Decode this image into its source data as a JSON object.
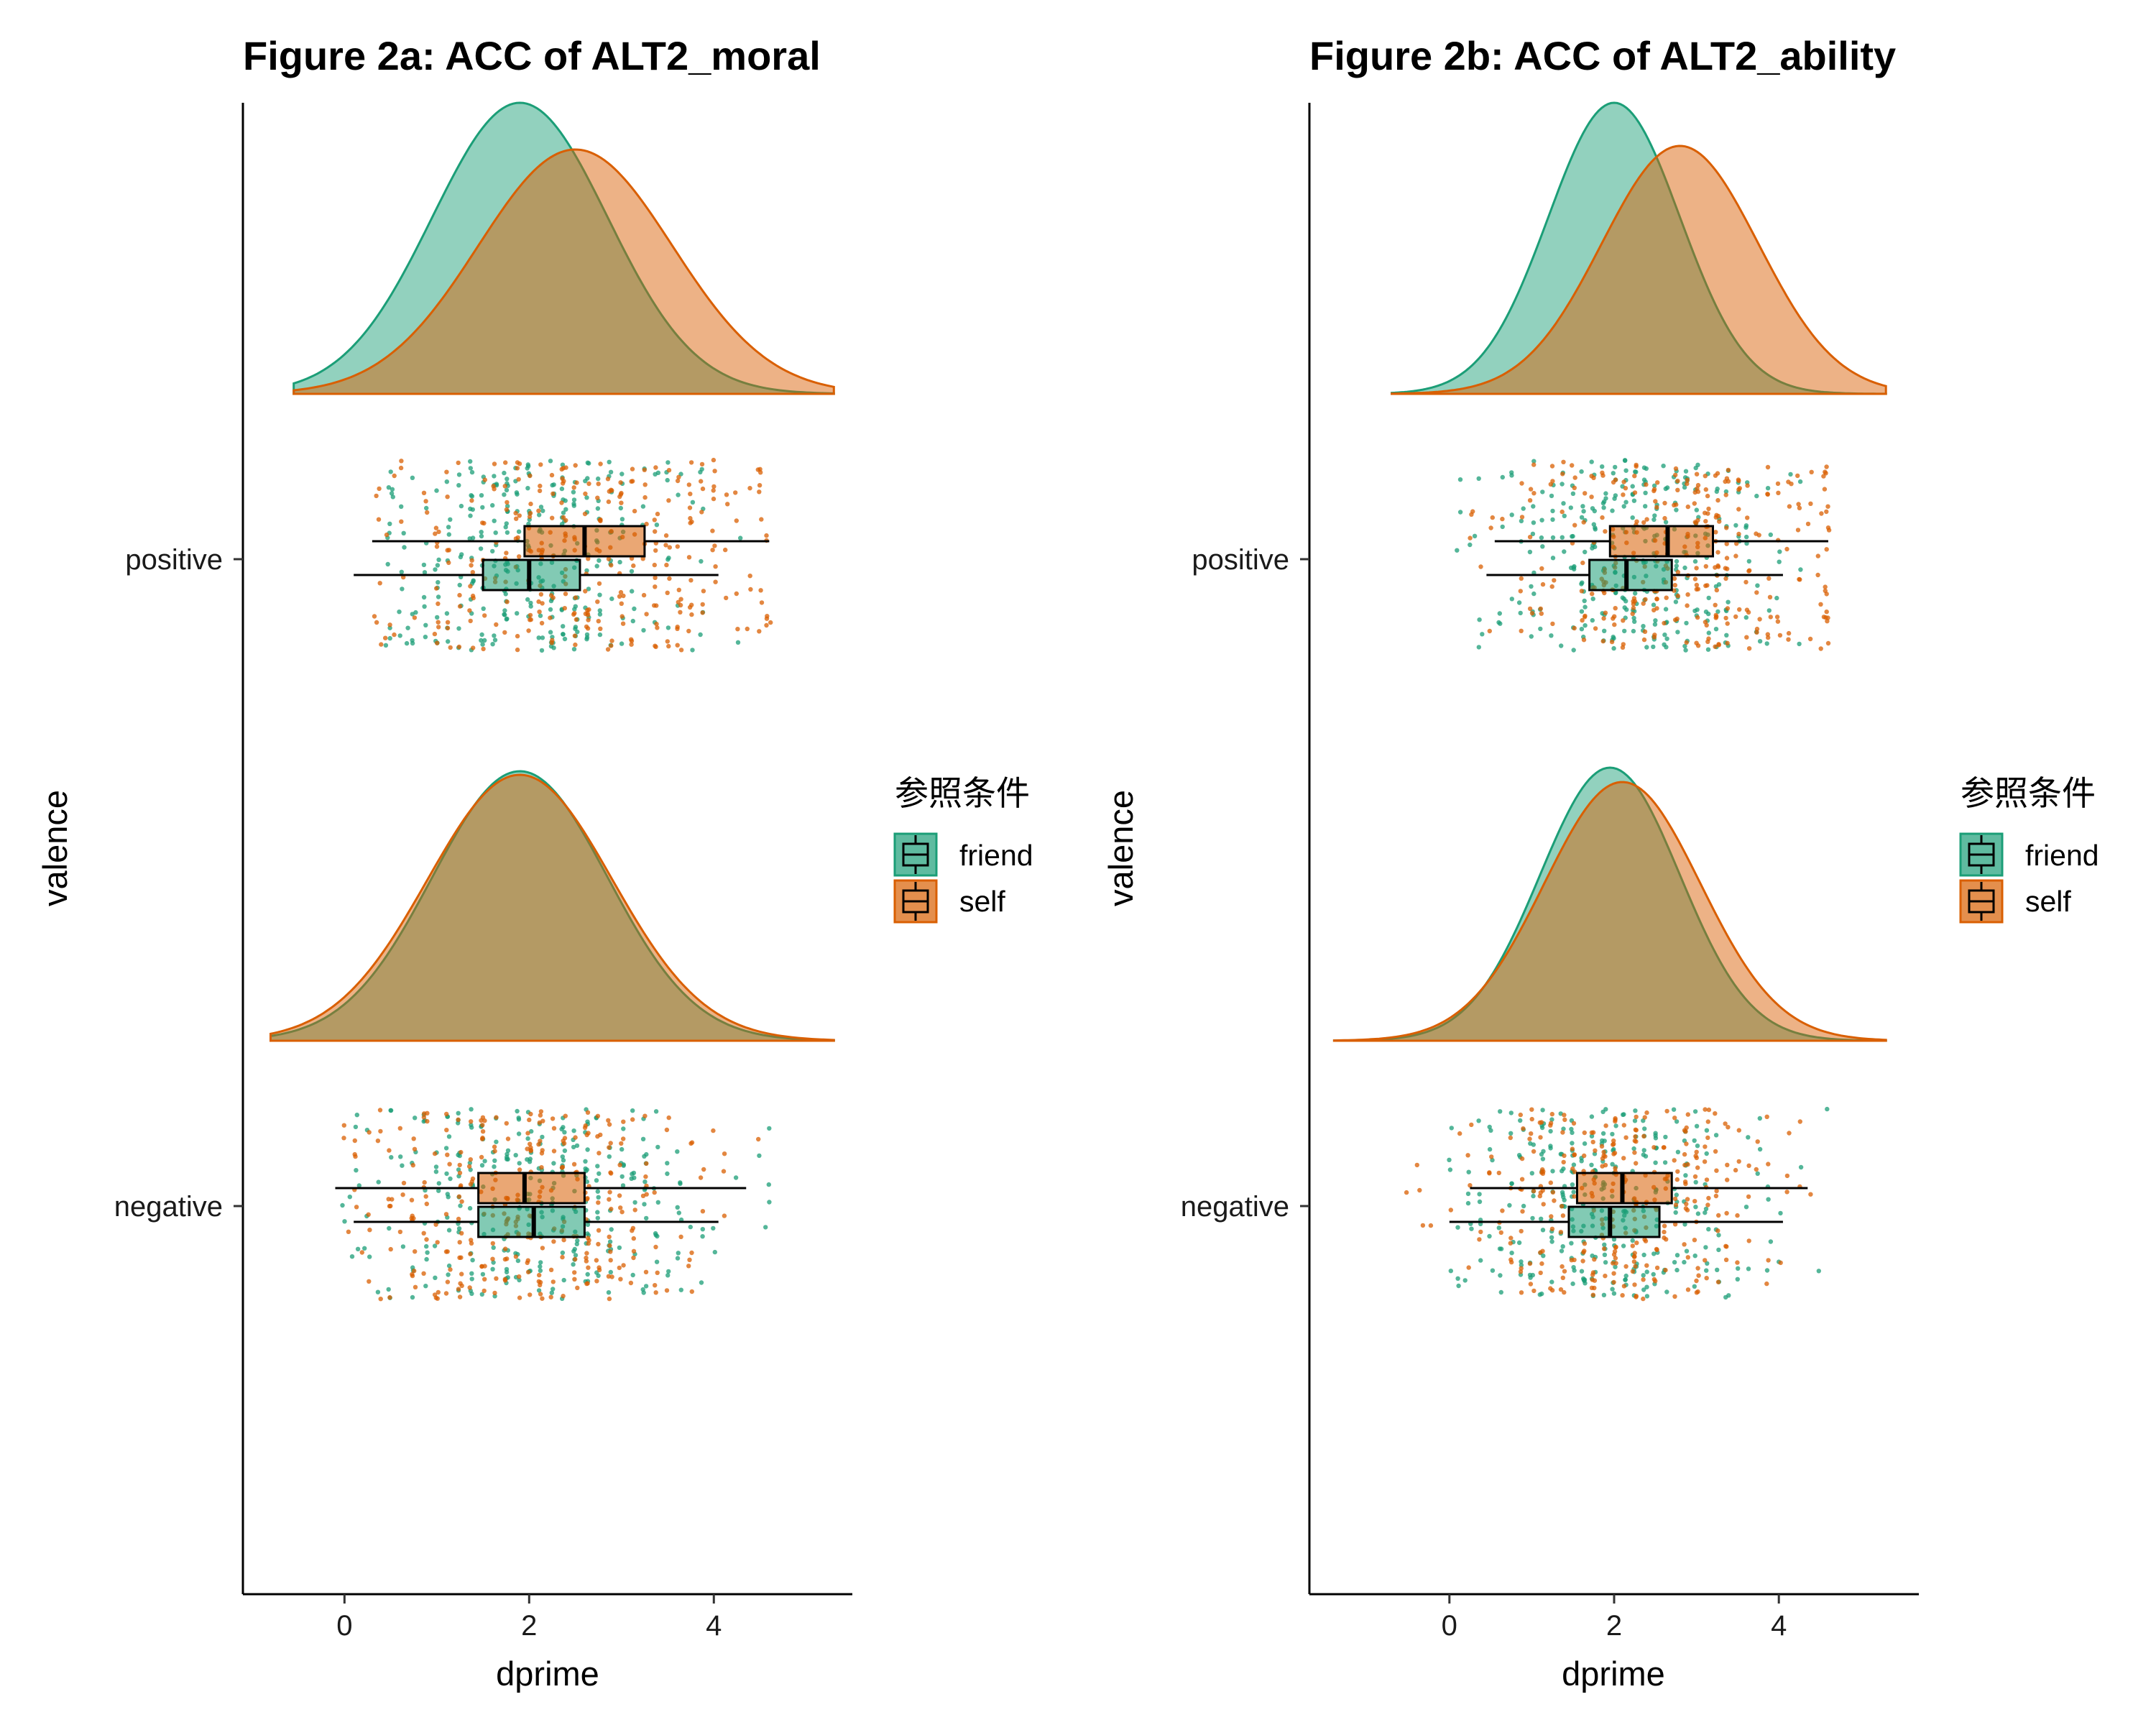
{
  "chart_data": [
    {
      "type": "raincloud",
      "title": "Figure 2a: ACC of ALT2_moral",
      "xlabel": "dprime",
      "ylabel": "valence",
      "xlim": [
        -1.1,
        5.5
      ],
      "xticks": [
        0,
        2,
        4
      ],
      "categories": [
        "negative",
        "positive"
      ],
      "legend": {
        "title": "参照条件",
        "entries": [
          "friend",
          "self"
        ],
        "position": "right"
      },
      "series": [
        {
          "name": "friend",
          "color": "#1B9E77",
          "groups": {
            "positive": {
              "density_peak": 1.9,
              "density_sd": 0.95,
              "density_range": [
                -0.55,
                5.3
              ],
              "box": {
                "whisker_low": 0.1,
                "q1": 1.5,
                "median": 2.0,
                "q3": 2.55,
                "whisker_high": 4.05
              },
              "points_range": [
                0.4,
                4.3
              ]
            },
            "negative": {
              "density_peak": 1.9,
              "density_sd": 0.95,
              "density_range": [
                -0.8,
                5.3
              ],
              "box": {
                "whisker_low": 0.1,
                "q1": 1.45,
                "median": 2.05,
                "q3": 2.6,
                "whisker_high": 4.05
              },
              "points_range": [
                0.0,
                4.6
              ]
            }
          }
        },
        {
          "name": "self",
          "color": "#D95F02",
          "groups": {
            "positive": {
              "density_peak": 2.5,
              "density_sd": 1.05,
              "density_range": [
                -0.55,
                5.3
              ],
              "box": {
                "whisker_low": 0.3,
                "q1": 1.95,
                "median": 2.6,
                "q3": 3.25,
                "whisker_high": 4.6
              },
              "points_range": [
                0.3,
                4.6
              ]
            },
            "negative": {
              "density_peak": 1.9,
              "density_sd": 1.0,
              "density_range": [
                -0.8,
                5.3
              ],
              "box": {
                "whisker_low": -0.1,
                "q1": 1.45,
                "median": 1.95,
                "q3": 2.6,
                "whisker_high": 4.35
              },
              "points_range": [
                0.0,
                4.6
              ]
            }
          }
        }
      ]
    },
    {
      "type": "raincloud",
      "title": "Figure 2b: ACC of ALT2_ability",
      "xlabel": "dprime",
      "ylabel": "valence",
      "xlim": [
        -1.7,
        5.7
      ],
      "xticks": [
        0,
        2,
        4
      ],
      "categories": [
        "negative",
        "positive"
      ],
      "legend": {
        "title": "参照条件",
        "entries": [
          "friend",
          "self"
        ],
        "position": "right"
      },
      "series": [
        {
          "name": "friend",
          "color": "#1B9E77",
          "groups": {
            "positive": {
              "density_peak": 2.0,
              "density_sd": 0.8,
              "density_range": [
                -0.7,
                5.3
              ],
              "box": {
                "whisker_low": 0.45,
                "q1": 1.7,
                "median": 2.15,
                "q3": 2.7,
                "whisker_high": 4.05
              },
              "points_range": [
                0.0,
                4.6
              ]
            },
            "negative": {
              "density_peak": 1.95,
              "density_sd": 0.85,
              "density_range": [
                -1.4,
                5.3
              ],
              "box": {
                "whisker_low": 0.0,
                "q1": 1.45,
                "median": 1.95,
                "q3": 2.55,
                "whisker_high": 4.05
              },
              "points_range": [
                0.0,
                4.6
              ]
            }
          }
        },
        {
          "name": "self",
          "color": "#D95F02",
          "groups": {
            "positive": {
              "density_peak": 2.8,
              "density_sd": 0.95,
              "density_range": [
                -0.7,
                5.3
              ],
              "box": {
                "whisker_low": 0.55,
                "q1": 1.95,
                "median": 2.65,
                "q3": 3.2,
                "whisker_high": 4.6
              },
              "points_range": [
                0.0,
                4.6
              ]
            },
            "negative": {
              "density_peak": 2.1,
              "density_sd": 0.95,
              "density_range": [
                -1.4,
                5.3
              ],
              "box": {
                "whisker_low": 0.25,
                "q1": 1.55,
                "median": 2.1,
                "q3": 2.7,
                "whisker_high": 4.35
              },
              "points_range": [
                -0.5,
                4.6
              ]
            }
          }
        }
      ]
    }
  ]
}
